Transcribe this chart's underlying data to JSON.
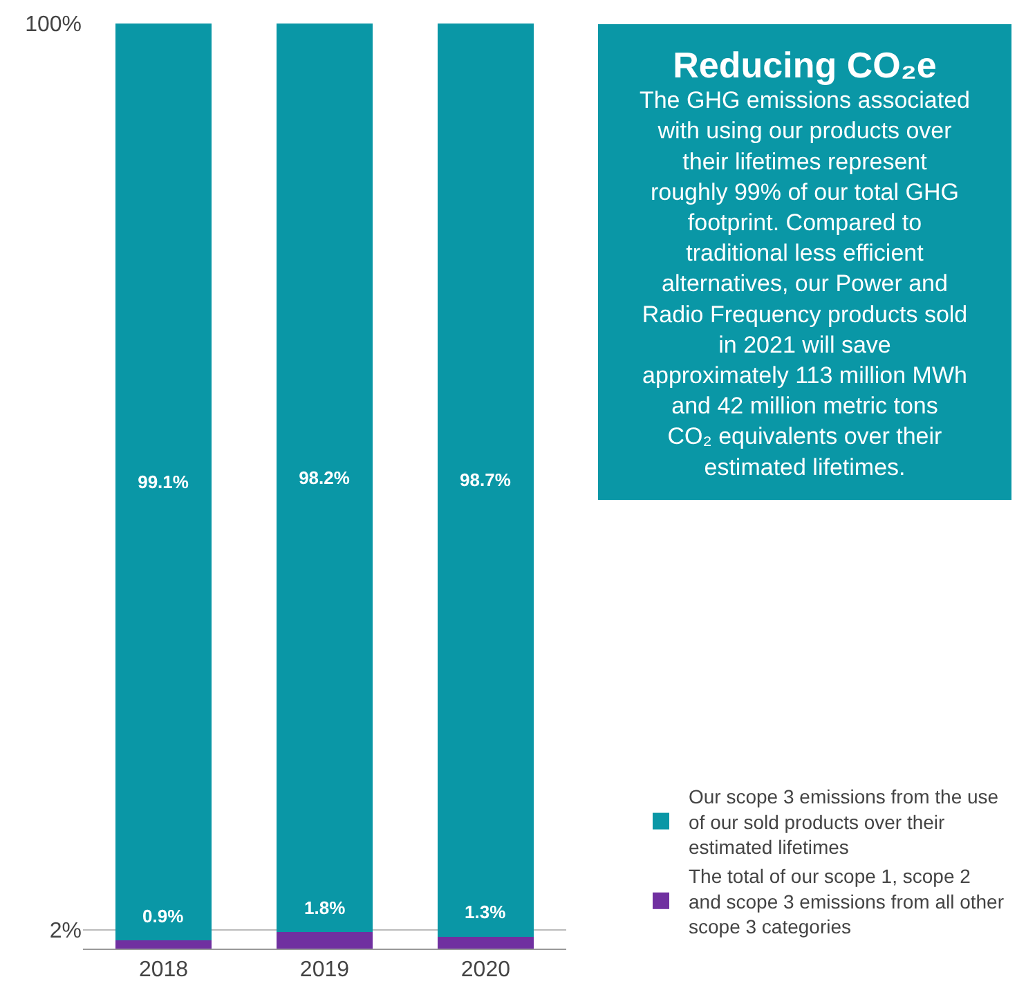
{
  "chart_data": {
    "type": "bar",
    "stacked": true,
    "categories": [
      "2018",
      "2019",
      "2020"
    ],
    "series": [
      {
        "name": "The total of our scope 1, scope 2 and scope 3 emissions from all other scope 3 categories",
        "color": "#7030a0",
        "values": [
          0.9,
          1.8,
          1.3
        ]
      },
      {
        "name": "Our scope 3 emissions from the use of our sold products over their estimated lifetimes",
        "color": "#0a97a6",
        "values": [
          99.1,
          98.2,
          98.7
        ]
      }
    ],
    "ylim": [
      0,
      100
    ],
    "yticks": [
      {
        "value": 2,
        "label": "2%"
      },
      {
        "value": 100,
        "label": "100%"
      }
    ],
    "grid": "y",
    "legend": "bottom right",
    "value_labels": [
      [
        "0.9%",
        "1.8%",
        "1.3%"
      ],
      [
        "99.1%",
        "98.2%",
        "98.7%"
      ]
    ],
    "annotations": [
      "Reducing CO₂e",
      "The GHG emissions associated with using our products over their lifetimes represent roughly 99% of our total GHG footprint. Compared to traditional less efficient alternatives, our Power and Radio Frequency products sold in 2021 will save approximately 113 million MWh and 42 million metric tons CO₂ equivalents over their estimated lifetimes."
    ]
  }
}
